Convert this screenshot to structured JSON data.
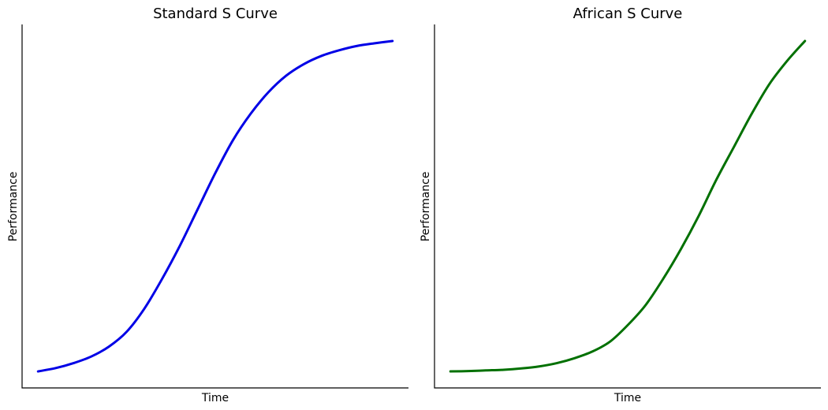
{
  "chart_data": [
    {
      "type": "line",
      "title": "Standard S Curve",
      "xlabel": "Time",
      "ylabel": "Performance",
      "xlim": [
        0,
        10
      ],
      "ylim": [
        -0.05,
        1.05
      ],
      "grid": false,
      "ticks": false,
      "series": [
        {
          "color": "#0000e6",
          "x": [
            0,
            0.5,
            1,
            1.5,
            2,
            2.5,
            3,
            3.5,
            4,
            4.5,
            5,
            5.5,
            6,
            6.5,
            7,
            7.5,
            8,
            8.5,
            9,
            9.5,
            10
          ],
          "y": [
            0.0,
            0.01,
            0.025,
            0.045,
            0.075,
            0.12,
            0.19,
            0.28,
            0.38,
            0.49,
            0.6,
            0.7,
            0.78,
            0.845,
            0.895,
            0.93,
            0.955,
            0.972,
            0.985,
            0.993,
            1.0
          ]
        }
      ]
    },
    {
      "type": "line",
      "title": "African S Curve",
      "xlabel": "Time",
      "ylabel": "Performance",
      "xlim": [
        0,
        10
      ],
      "ylim": [
        -0.05,
        1.05
      ],
      "grid": false,
      "ticks": false,
      "series": [
        {
          "color": "#007000",
          "x": [
            0,
            0.5,
            1,
            1.5,
            2,
            2.5,
            3,
            3.5,
            4,
            4.5,
            5,
            5.5,
            6,
            6.5,
            7,
            7.5,
            8,
            8.5,
            9,
            9.5,
            10
          ],
          "y": [
            0.0,
            0.001,
            0.003,
            0.005,
            0.009,
            0.015,
            0.025,
            0.04,
            0.06,
            0.09,
            0.14,
            0.2,
            0.28,
            0.37,
            0.47,
            0.58,
            0.68,
            0.78,
            0.87,
            0.94,
            1.0
          ]
        }
      ]
    }
  ]
}
